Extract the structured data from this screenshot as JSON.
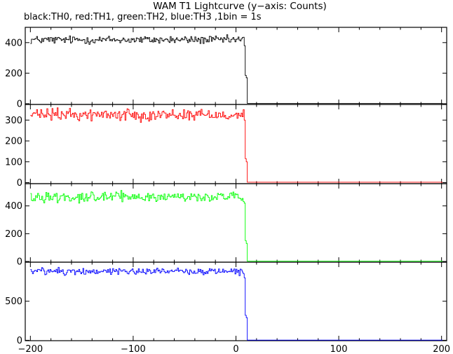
{
  "chart_data": {
    "type": "line",
    "title": "WAM T1 Lightcurve (y−axis: Counts)",
    "subtitle": "black:TH0, red:TH1, green:TH2, blue:TH3 ,1bin = 1s",
    "xlim": [
      -205,
      205
    ],
    "x_ticks": [
      -200,
      -100,
      0,
      100,
      200
    ],
    "x_tick_labels": [
      "−200",
      "−100",
      "0",
      "100",
      "200"
    ],
    "grid": false,
    "panels": [
      {
        "name": "TH0",
        "color": "#000000",
        "ylim": [
          -5,
          500
        ],
        "y_ticks": [
          0,
          200,
          400
        ],
        "y_tick_labels": [
          "0",
          "200",
          "400"
        ],
        "series": {
          "x_start": -200,
          "x_end": 200,
          "step": 1,
          "pre_drop_mean": 418,
          "pre_drop_noise": 13,
          "drop_x": [
            8,
            9,
            10,
            11
          ],
          "drop_y": [
            380,
            185,
            170,
            2
          ],
          "post_drop_level": 2
        }
      },
      {
        "name": "TH1",
        "color": "#ff0000",
        "ylim": [
          -5,
          375
        ],
        "y_ticks": [
          0,
          100,
          200,
          300
        ],
        "y_tick_labels": [
          "0",
          "100",
          "200",
          "300"
        ],
        "series": {
          "x_start": -200,
          "x_end": 200,
          "step": 1,
          "pre_drop_mean": 326,
          "pre_drop_noise": 14,
          "drop_x": [
            8,
            9,
            10,
            11
          ],
          "drop_y": [
            300,
            115,
            100,
            2
          ],
          "post_drop_level": 2
        }
      },
      {
        "name": "TH2",
        "color": "#00ff00",
        "ylim": [
          -5,
          560
        ],
        "y_ticks": [
          0,
          200,
          400
        ],
        "y_tick_labels": [
          "0",
          "200",
          "400"
        ],
        "series": {
          "x_start": -200,
          "x_end": 200,
          "step": 1,
          "pre_drop_mean": 465,
          "pre_drop_noise": 18,
          "drop_x": [
            8,
            9,
            10,
            11
          ],
          "drop_y": [
            420,
            150,
            130,
            2
          ],
          "post_drop_level": 2
        }
      },
      {
        "name": "TH3",
        "color": "#0000ff",
        "ylim": [
          -5,
          1000
        ],
        "y_ticks": [
          0,
          500
        ],
        "y_tick_labels": [
          "0",
          "500"
        ],
        "series": {
          "x_start": -200,
          "x_end": 200,
          "step": 1,
          "pre_drop_mean": 885,
          "pre_drop_noise": 22,
          "drop_x": [
            8,
            9,
            10,
            11
          ],
          "drop_y": [
            800,
            320,
            290,
            2
          ],
          "post_drop_level": 2
        }
      }
    ]
  }
}
